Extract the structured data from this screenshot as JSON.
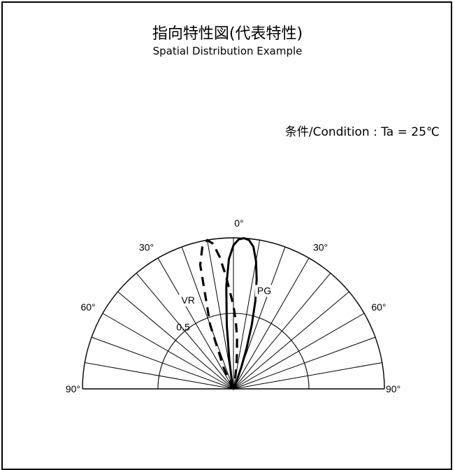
{
  "header": {
    "title": "指向特性図(代表特性)",
    "subtitle": "Spatial Distribution Example",
    "condition": "条件/Condition : Ta = 25℃"
  },
  "chart_data": {
    "type": "polar",
    "title": "指向特性図(代表特性)",
    "subtitle": "Spatial Distribution Example",
    "angle_range": [
      -90,
      90
    ],
    "radial_range": [
      0,
      1
    ],
    "angle_ticks": [
      {
        "angle": -90,
        "label": "90°"
      },
      {
        "angle": -60,
        "label": "60°"
      },
      {
        "angle": -30,
        "label": "30°"
      },
      {
        "angle": 0,
        "label": "0°"
      },
      {
        "angle": 30,
        "label": "30°"
      },
      {
        "angle": 60,
        "label": "60°"
      },
      {
        "angle": 90,
        "label": "90°"
      }
    ],
    "radial_ticks": [
      {
        "value": 0.5,
        "label": "0.5"
      }
    ],
    "grid": true,
    "series": [
      {
        "name": "VR",
        "style": "dashed",
        "angles": [
          -90,
          -60,
          -45,
          -30,
          -25,
          -20,
          -15,
          -12,
          -10,
          -8,
          -6,
          -4,
          -2,
          0,
          2,
          4,
          6,
          8,
          10,
          15,
          20,
          30,
          90
        ],
        "values": [
          0,
          0,
          0,
          0.02,
          0.15,
          0.45,
          0.85,
          0.98,
          1.0,
          0.97,
          0.88,
          0.76,
          0.64,
          0.55,
          0.45,
          0.34,
          0.22,
          0.12,
          0.05,
          0.01,
          0,
          0,
          0
        ]
      },
      {
        "name": "PG",
        "style": "solid",
        "angles": [
          -90,
          -30,
          -20,
          -15,
          -10,
          -8,
          -6,
          -4,
          -2,
          0,
          2,
          4,
          6,
          8,
          10,
          12,
          14,
          16,
          18,
          20,
          25,
          30,
          90
        ],
        "values": [
          0,
          0,
          0,
          0.01,
          0.08,
          0.2,
          0.42,
          0.68,
          0.86,
          0.95,
          0.99,
          1.0,
          0.99,
          0.95,
          0.86,
          0.74,
          0.6,
          0.44,
          0.28,
          0.15,
          0.03,
          0,
          0
        ]
      }
    ]
  }
}
